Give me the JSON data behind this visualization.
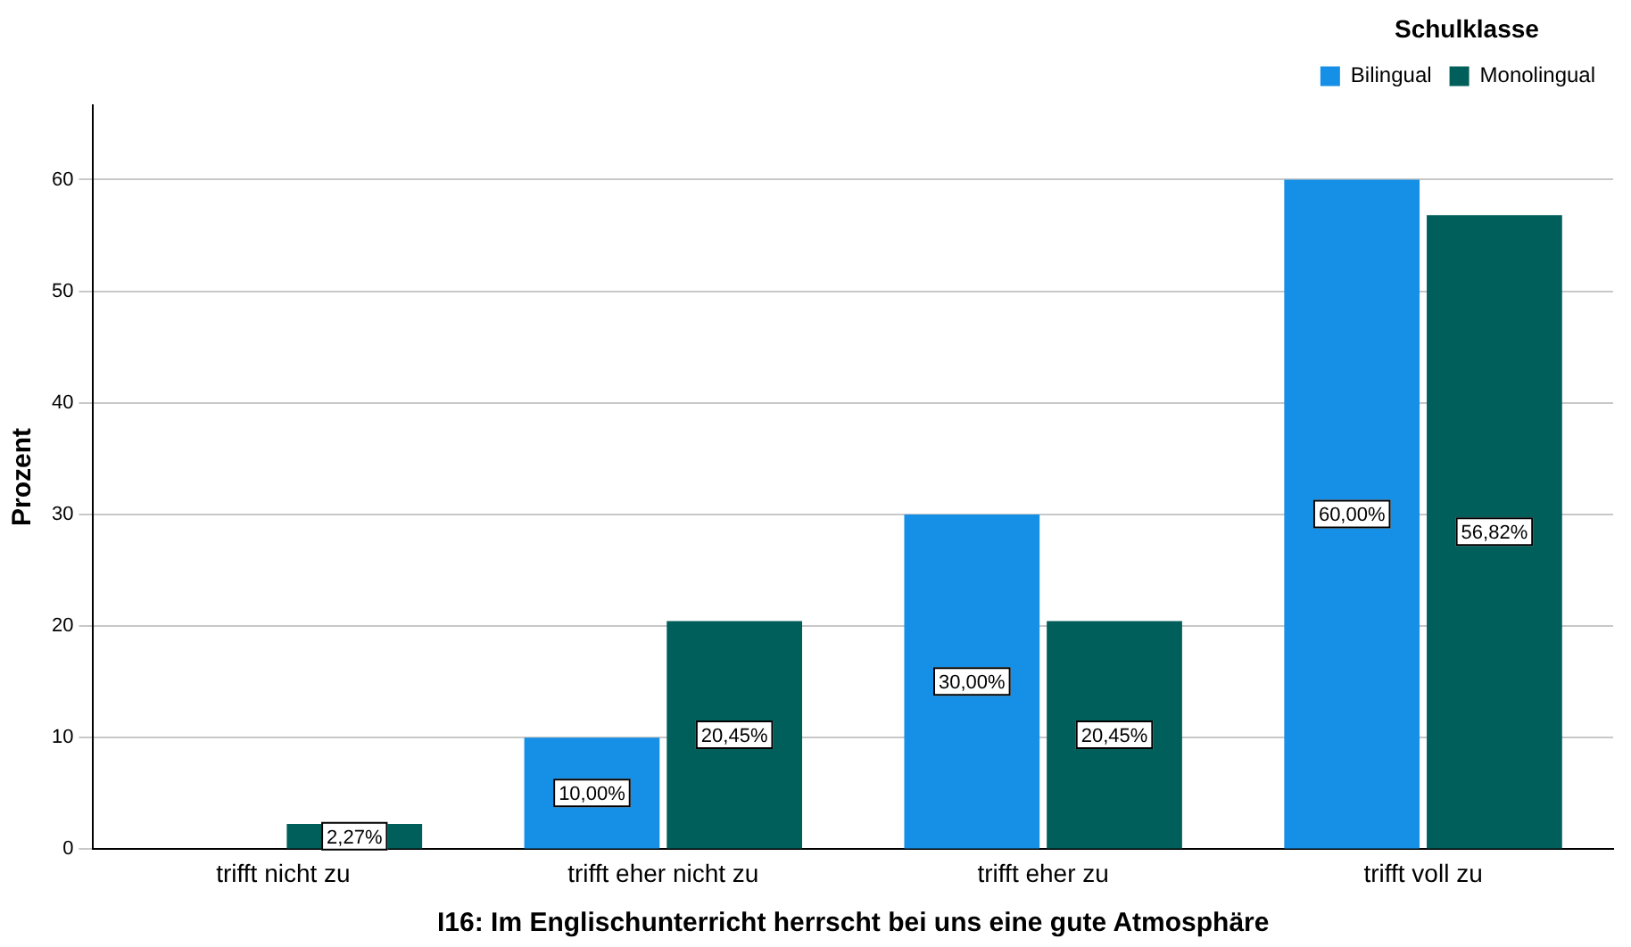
{
  "chart_data": {
    "type": "bar",
    "xlabel": "I16: Im Englischunterricht herrscht bei uns eine gute Atmosphäre",
    "ylabel": "Prozent",
    "legend_title": "Schulklasse",
    "legend": "top right",
    "grid": "y",
    "categories": [
      "trifft nicht zu",
      "trifft eher nicht zu",
      "trifft eher zu",
      "trifft voll zu"
    ],
    "series": [
      {
        "name": "Bilingual",
        "color": "#1590e6",
        "values": [
          0,
          10,
          30,
          60
        ],
        "value_labels": [
          null,
          "10,00%",
          "30,00%",
          "60,00%"
        ]
      },
      {
        "name": "Monolingual",
        "color": "#005e5b",
        "values": [
          2.27,
          20.45,
          20.45,
          56.82
        ],
        "value_labels": [
          "2,27%",
          "20,45%",
          "20,45%",
          "56,82%"
        ]
      }
    ],
    "ylim": [
      0,
      66.7
    ],
    "yticks": [
      0,
      10,
      20,
      30,
      40,
      50,
      60
    ]
  }
}
